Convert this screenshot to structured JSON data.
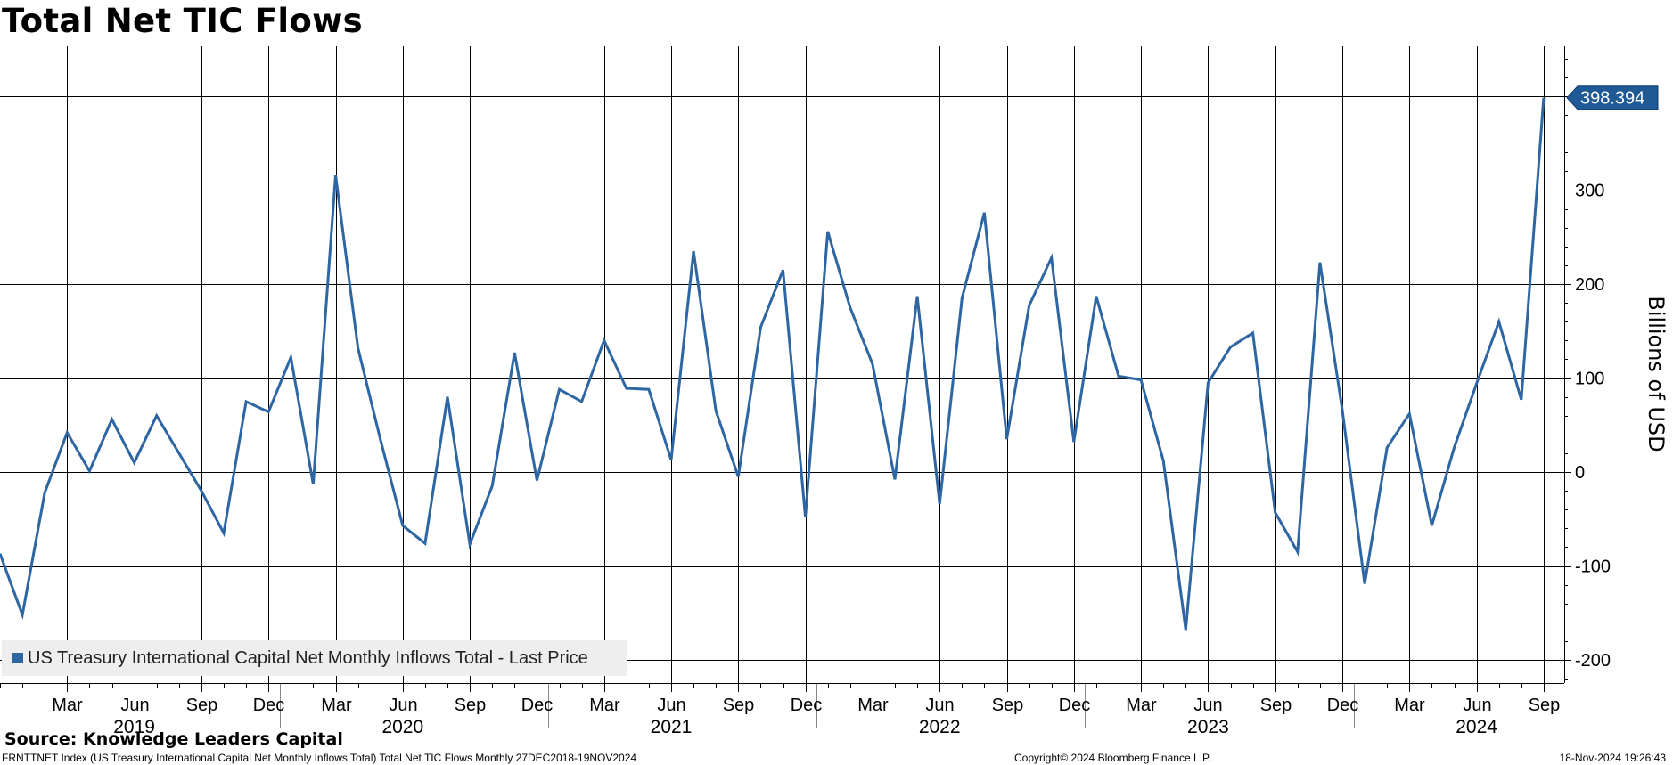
{
  "title": "Total Net TIC Flows",
  "source": "Source: Knowledge Leaders Capital",
  "footer": {
    "left": "FRNTTNET Index (US Treasury International Capital Net Monthly Inflows Total) Total Net TIC Flows  Monthly 27DEC2018-19NOV2024",
    "copyright": "Copyright© 2024 Bloomberg Finance L.P.",
    "timestamp": "18-Nov-2024 19:26:43"
  },
  "legend": {
    "label": "US Treasury International Capital Net Monthly Inflows Total - Last Price"
  },
  "last_value_label": "398.394",
  "colors": {
    "series": "#2e66a3",
    "grid": "#000000",
    "legend_bg": "#eeeeee"
  },
  "chart_data": {
    "type": "line",
    "title": "Total Net TIC Flows",
    "ylabel": "Billions of USD",
    "ylim": [
      -220,
      450
    ],
    "yticks": [
      -200,
      -100,
      0,
      100,
      200,
      300
    ],
    "grid": true,
    "legend_position": "bottom-left",
    "x_month_labels": [
      "Mar",
      "Jun",
      "Sep",
      "Dec",
      "Mar",
      "Jun",
      "Sep",
      "Dec",
      "Mar",
      "Jun",
      "Sep",
      "Dec",
      "Mar",
      "Jun",
      "Sep",
      "Dec",
      "Mar",
      "Jun",
      "Sep",
      "Dec",
      "Mar",
      "Jun",
      "Sep"
    ],
    "x_year_labels": [
      "2019",
      "2020",
      "2021",
      "2022",
      "2023",
      "2024"
    ],
    "x_start": "2018-12",
    "x_end": "2024-09",
    "series": [
      {
        "name": "US Treasury International Capital Net Monthly Inflows Total - Last Price",
        "x": [
          "2018-12",
          "2019-01",
          "2019-02",
          "2019-03",
          "2019-04",
          "2019-05",
          "2019-06",
          "2019-07",
          "2019-08",
          "2019-09",
          "2019-10",
          "2019-11",
          "2019-12",
          "2020-01",
          "2020-02",
          "2020-03",
          "2020-04",
          "2020-05",
          "2020-06",
          "2020-07",
          "2020-08",
          "2020-09",
          "2020-10",
          "2020-11",
          "2020-12",
          "2021-01",
          "2021-02",
          "2021-03",
          "2021-04",
          "2021-05",
          "2021-06",
          "2021-07",
          "2021-08",
          "2021-09",
          "2021-10",
          "2021-11",
          "2021-12",
          "2022-01",
          "2022-02",
          "2022-03",
          "2022-04",
          "2022-05",
          "2022-06",
          "2022-07",
          "2022-08",
          "2022-09",
          "2022-10",
          "2022-11",
          "2022-12",
          "2023-01",
          "2023-02",
          "2023-03",
          "2023-04",
          "2023-05",
          "2023-06",
          "2023-07",
          "2023-08",
          "2023-09",
          "2023-10",
          "2023-11",
          "2023-12",
          "2024-01",
          "2024-02",
          "2024-03",
          "2024-04",
          "2024-05",
          "2024-06",
          "2024-07",
          "2024-08",
          "2024-09"
        ],
        "values": [
          -87,
          -152,
          -22,
          42,
          1,
          56,
          10,
          60,
          20,
          -20,
          -65,
          75,
          64,
          122,
          -13,
          316,
          132,
          35,
          -57,
          -76,
          80,
          -77,
          -15,
          127,
          -9,
          88,
          75,
          140,
          89,
          88,
          13,
          235,
          65,
          -5,
          154,
          215,
          -48,
          256,
          175,
          115,
          -8,
          187,
          -34,
          185,
          276,
          35,
          177,
          228,
          32,
          187,
          102,
          98,
          12,
          -168,
          95,
          133,
          148,
          -43,
          -85,
          223,
          66,
          -119,
          26,
          62,
          -57,
          26,
          94,
          160,
          77,
          398.394
        ]
      }
    ]
  }
}
